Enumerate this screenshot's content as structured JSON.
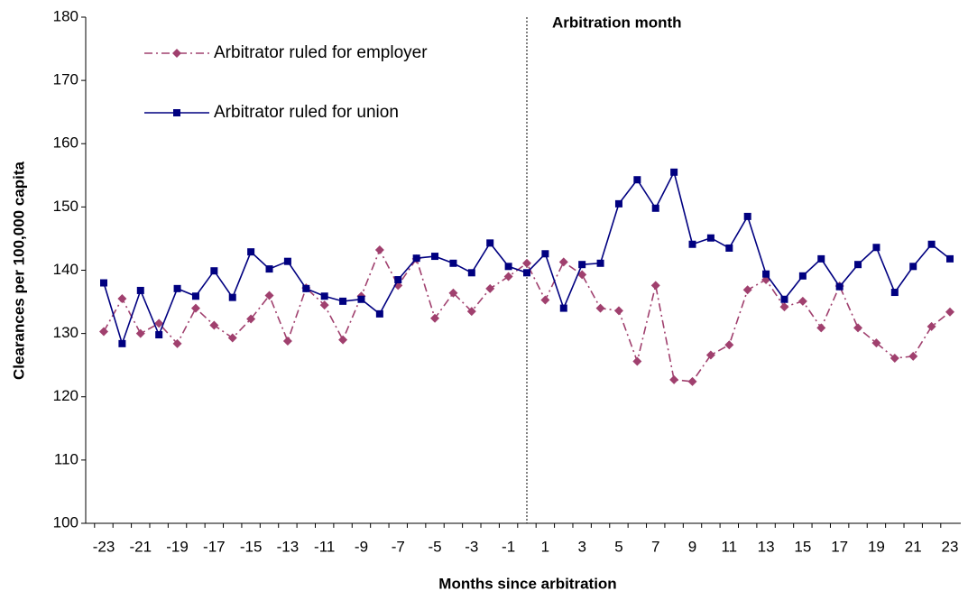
{
  "chart_data": {
    "type": "line",
    "y_label": "Clearances per 100,000 capita",
    "x_label": "Months since arbitration",
    "annotation": "Arbitration month",
    "categories": [
      "-23",
      null,
      "-21",
      null,
      "-19",
      null,
      "-17",
      null,
      "-15",
      null,
      "-13",
      null,
      "-11",
      null,
      "-9",
      null,
      "-7",
      null,
      "-5",
      null,
      "-3",
      null,
      "-1",
      null,
      "1",
      null,
      "3",
      null,
      "5",
      null,
      "7",
      null,
      "9",
      null,
      "11",
      null,
      "13",
      null,
      "15",
      null,
      "17",
      null,
      "19",
      null,
      "21",
      null,
      "23"
    ],
    "series": [
      {
        "name": "Arbitrator ruled for employer",
        "color": "#a0406e",
        "line_style": "dash-dot",
        "marker": "diamond",
        "values": [
          130.3,
          135.5,
          130.0,
          131.6,
          128.4,
          134.0,
          131.3,
          129.3,
          132.3,
          136.0,
          128.8,
          137.2,
          134.5,
          129.0,
          135.9,
          143.2,
          137.6,
          141.8,
          132.4,
          136.4,
          133.5,
          137.1,
          139.0,
          141.1,
          135.3,
          141.3,
          139.3,
          134.0,
          133.6,
          125.6,
          137.6,
          122.7,
          122.4,
          126.6,
          128.2,
          136.9,
          138.5,
          134.2,
          135.1,
          130.9,
          137.5,
          130.9,
          128.5,
          126.1,
          126.4,
          131.1,
          133.4
        ]
      },
      {
        "name": "Arbitrator ruled for union",
        "color": "#000080",
        "line_style": "solid",
        "marker": "square",
        "values": [
          138.0,
          128.4,
          136.8,
          129.8,
          137.1,
          135.9,
          139.9,
          135.7,
          142.9,
          140.2,
          141.4,
          137.1,
          135.9,
          135.1,
          135.4,
          133.1,
          138.5,
          141.9,
          142.2,
          141.1,
          139.6,
          144.3,
          140.6,
          139.6,
          142.6,
          134.0,
          140.9,
          141.1,
          150.5,
          154.3,
          149.8,
          155.5,
          144.1,
          145.1,
          143.5,
          148.5,
          139.4,
          135.4,
          139.1,
          141.8,
          137.4,
          140.9,
          143.6,
          136.5,
          140.6,
          144.1,
          141.8
        ]
      }
    ],
    "ylim": [
      100,
      180
    ],
    "yticks": [
      100,
      110,
      120,
      130,
      140,
      150,
      160,
      170,
      180
    ],
    "grid": false,
    "legend": "upper left"
  }
}
